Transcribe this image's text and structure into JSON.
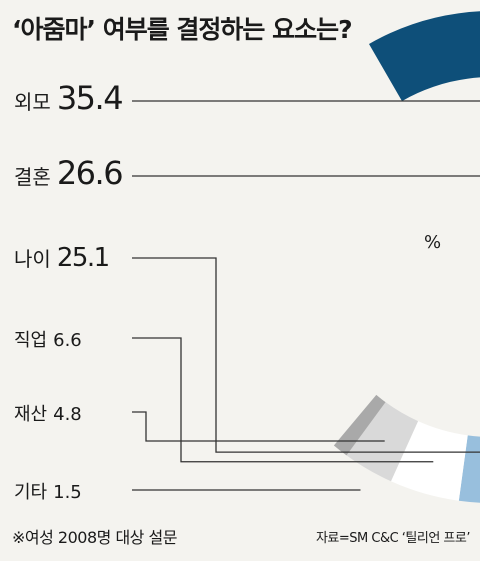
{
  "chart_data": {
    "type": "donut",
    "title": "‘아줌마’ 여부를 결정하는 요소는?",
    "unit": "%",
    "categories": [
      "외모",
      "결혼",
      "나이",
      "직업",
      "재산",
      "기타"
    ],
    "values": [
      35.4,
      26.6,
      25.1,
      6.6,
      4.8,
      1.5
    ],
    "value_labels": [
      "35.4",
      "26.6",
      "25.1",
      "6.6",
      "4.8",
      "1.5"
    ],
    "colors": [
      "#0e4f79",
      "#5f8fbc",
      "#98bfdd",
      "#ffffff",
      "#d9d9d9",
      "#a9a9a9"
    ],
    "legend": "left"
  },
  "note": "※여성 2008명 대상 설문",
  "source": "자료=SM C&C ‘틸리언 프로’"
}
